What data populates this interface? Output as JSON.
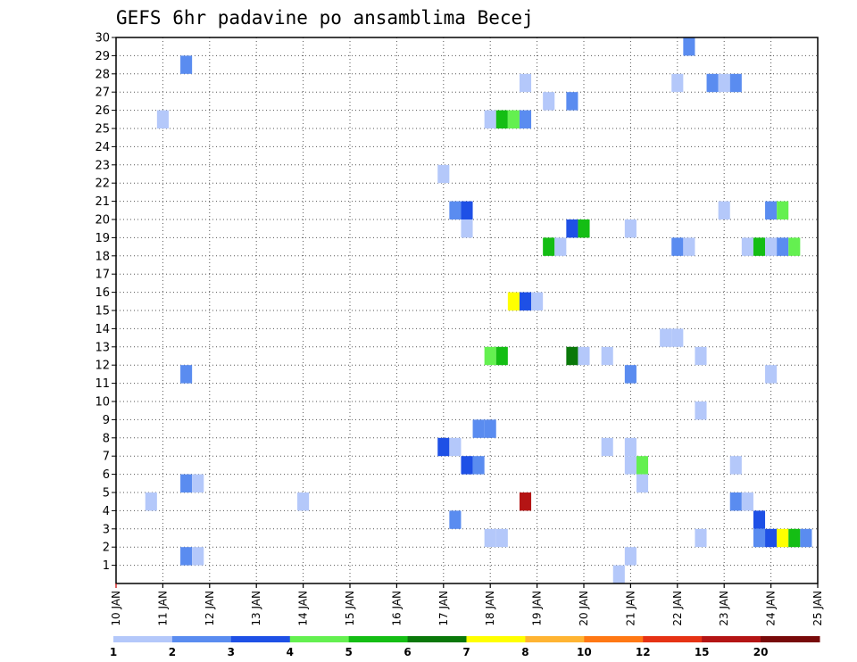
{
  "chart_data": {
    "type": "heatmap",
    "title": "GEFS 6hr padavine po ansamblima Becej",
    "xlabel": "",
    "ylabel": "",
    "x_tick_labels": [
      "10 JAN",
      "11 JAN",
      "12 JAN",
      "13 JAN",
      "14 JAN",
      "15 JAN",
      "16 JAN",
      "17 JAN",
      "18 JAN",
      "19 JAN",
      "20 JAN",
      "21 JAN",
      "22 JAN",
      "23 JAN",
      "24 JAN",
      "25 JAN"
    ],
    "y_tick_labels": [
      "1",
      "2",
      "3",
      "4",
      "5",
      "6",
      "7",
      "8",
      "9",
      "10",
      "11",
      "12",
      "13",
      "14",
      "15",
      "16",
      "17",
      "18",
      "19",
      "20",
      "21",
      "22",
      "23",
      "24",
      "25",
      "26",
      "27",
      "28",
      "29",
      "30"
    ],
    "x_range_days": [
      10,
      25
    ],
    "y_range": [
      0,
      30
    ],
    "grid": true,
    "colorbar": {
      "labels": [
        "1",
        "2",
        "3",
        "4",
        "5",
        "6",
        "7",
        "8",
        "10",
        "12",
        "15",
        "20"
      ],
      "colors": [
        "#b4c8fa",
        "#5a8cf0",
        "#1e50e6",
        "#64f050",
        "#14be14",
        "#0a780a",
        "#ffff00",
        "#ffb432",
        "#ff7814",
        "#e63214",
        "#b41414",
        "#780a0a"
      ]
    },
    "cells": [
      [
        11.5,
        29,
        1
      ],
      [
        22.25,
        30,
        1
      ],
      [
        18.75,
        28,
        0
      ],
      [
        22.0,
        28,
        0
      ],
      [
        22.75,
        28,
        1
      ],
      [
        23.0,
        28,
        0
      ],
      [
        23.25,
        28,
        1
      ],
      [
        19.25,
        27,
        0
      ],
      [
        19.75,
        27,
        1
      ],
      [
        11.0,
        26,
        0
      ],
      [
        18.0,
        26,
        0
      ],
      [
        18.25,
        26,
        4
      ],
      [
        18.5,
        26,
        3
      ],
      [
        18.75,
        26,
        1
      ],
      [
        17.0,
        23,
        0
      ],
      [
        17.25,
        21,
        1
      ],
      [
        17.5,
        21,
        2
      ],
      [
        23.0,
        21,
        0
      ],
      [
        24.0,
        21,
        1
      ],
      [
        24.25,
        21,
        3
      ],
      [
        17.5,
        20,
        0
      ],
      [
        19.75,
        20,
        2
      ],
      [
        20.0,
        20,
        4
      ],
      [
        21.0,
        20,
        0
      ],
      [
        19.25,
        19,
        4
      ],
      [
        19.5,
        19,
        0
      ],
      [
        22.0,
        19,
        1
      ],
      [
        22.25,
        19,
        0
      ],
      [
        23.5,
        19,
        0
      ],
      [
        23.75,
        19,
        4
      ],
      [
        24.0,
        19,
        0
      ],
      [
        24.25,
        19,
        1
      ],
      [
        24.5,
        19,
        3
      ],
      [
        18.5,
        16,
        6
      ],
      [
        18.75,
        16,
        2
      ],
      [
        19.0,
        16,
        0
      ],
      [
        21.75,
        14,
        0
      ],
      [
        22.0,
        14,
        0
      ],
      [
        18.0,
        13,
        3
      ],
      [
        18.25,
        13,
        4
      ],
      [
        19.75,
        13,
        5
      ],
      [
        20.0,
        13,
        0
      ],
      [
        20.5,
        13,
        0
      ],
      [
        22.5,
        13,
        0
      ],
      [
        11.5,
        12,
        1
      ],
      [
        21.0,
        12,
        1
      ],
      [
        24.0,
        12,
        0
      ],
      [
        22.5,
        10,
        0
      ],
      [
        17.75,
        9,
        1
      ],
      [
        18.0,
        9,
        1
      ],
      [
        17.0,
        8,
        2
      ],
      [
        17.25,
        8,
        0
      ],
      [
        20.5,
        8,
        0
      ],
      [
        21.0,
        8,
        0
      ],
      [
        17.5,
        7,
        2
      ],
      [
        17.75,
        7,
        1
      ],
      [
        21.0,
        7,
        0
      ],
      [
        21.25,
        7,
        3
      ],
      [
        23.25,
        7,
        0
      ],
      [
        11.5,
        6,
        1
      ],
      [
        11.75,
        6,
        0
      ],
      [
        21.25,
        6,
        0
      ],
      [
        10.75,
        5,
        0
      ],
      [
        14.0,
        5,
        0
      ],
      [
        18.75,
        5,
        10
      ],
      [
        23.25,
        5,
        1
      ],
      [
        23.5,
        5,
        0
      ],
      [
        17.25,
        4,
        1
      ],
      [
        23.75,
        4,
        2
      ],
      [
        18.0,
        3,
        0
      ],
      [
        18.25,
        3,
        0
      ],
      [
        22.5,
        3,
        0
      ],
      [
        23.75,
        3,
        1
      ],
      [
        24.0,
        3,
        2
      ],
      [
        24.25,
        3,
        6
      ],
      [
        24.5,
        3,
        4
      ],
      [
        24.75,
        3,
        1
      ],
      [
        11.5,
        2,
        1
      ],
      [
        11.75,
        2,
        0
      ],
      [
        21.0,
        2,
        0
      ],
      [
        20.75,
        1,
        0
      ]
    ]
  }
}
